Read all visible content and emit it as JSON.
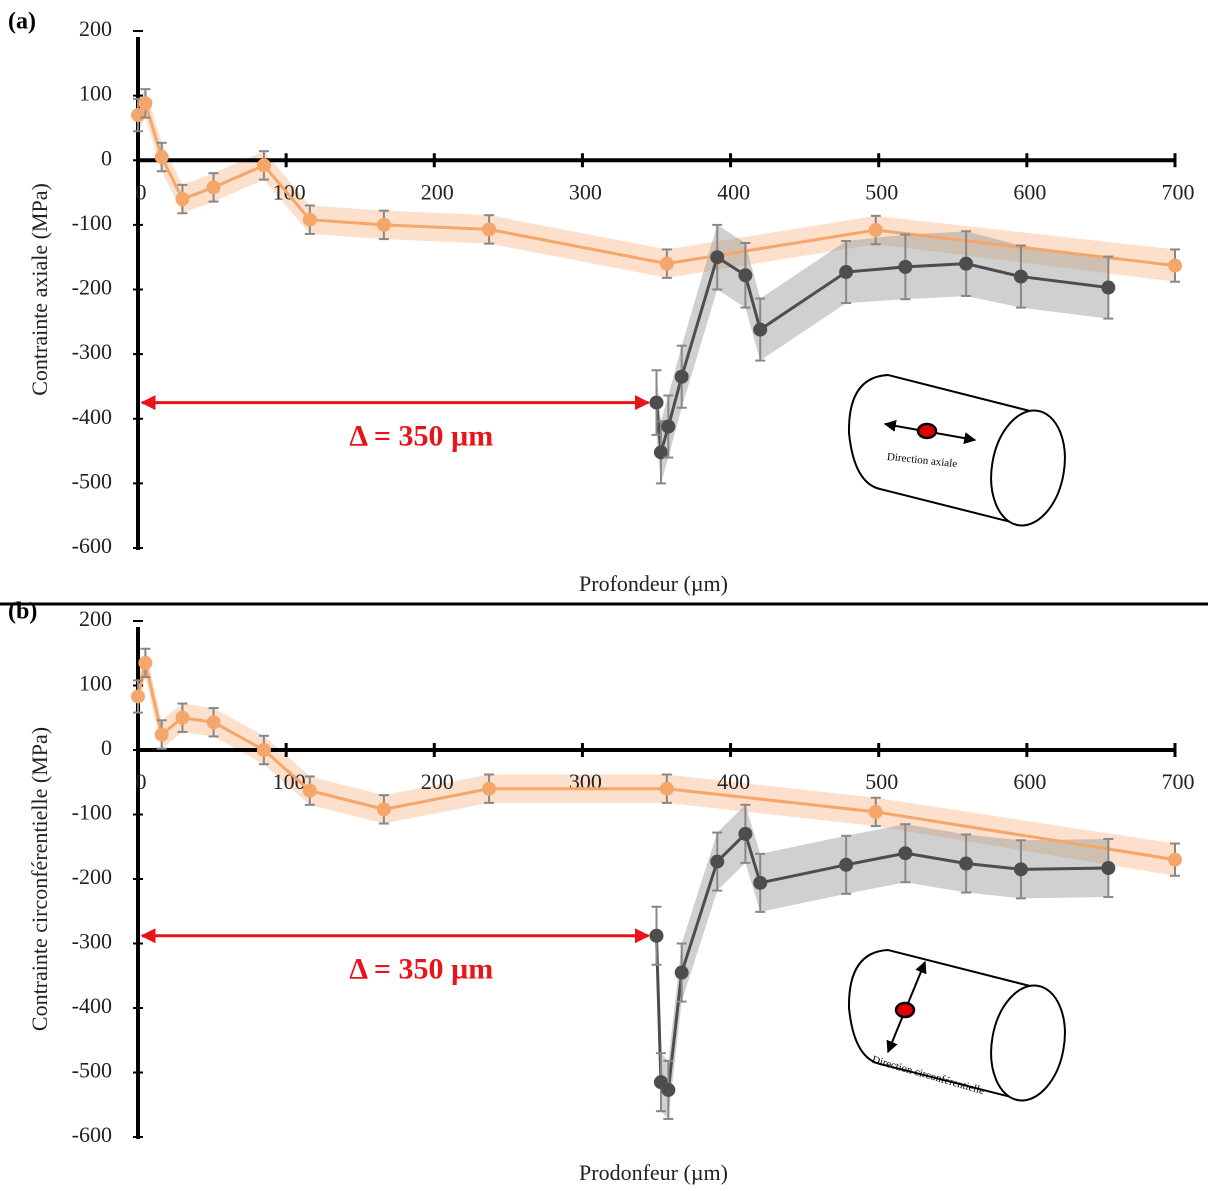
{
  "chart_data": [
    {
      "type": "line",
      "panel_label": "(a)",
      "xlabel": "Profondeur (µm)",
      "ylabel": "Contrainte axiale (MPa)",
      "xlim": [
        0,
        700
      ],
      "xticks": [
        0,
        100,
        200,
        300,
        400,
        500,
        600,
        700
      ],
      "ylim": [
        -600,
        200
      ],
      "yticks": [
        -600,
        -500,
        -400,
        -300,
        -200,
        -100,
        0,
        100,
        200
      ],
      "annotation": "Δ = 350 µm",
      "inset_label": "Direction axiale",
      "series": [
        {
          "color": "#f5a66b",
          "x": [
            0,
            5,
            16,
            30,
            51,
            85,
            116,
            166,
            237,
            357,
            498,
            700
          ],
          "values": [
            70,
            88,
            5,
            -60,
            -42,
            -8,
            -92,
            -100,
            -107,
            -160,
            -108,
            -163
          ],
          "errors": [
            25,
            22,
            22,
            22,
            22,
            22,
            22,
            22,
            22,
            22,
            22,
            25
          ]
        },
        {
          "color": "#4d4d4d",
          "x": [
            350,
            353,
            358,
            367,
            391,
            410,
            420,
            478,
            518,
            559,
            596,
            655
          ],
          "values": [
            -375,
            -452,
            -412,
            -335,
            -150,
            -178,
            -262,
            -173,
            -165,
            -160,
            -180,
            -197
          ],
          "errors": [
            50,
            48,
            48,
            48,
            50,
            50,
            48,
            48,
            50,
            50,
            48,
            48
          ]
        }
      ]
    },
    {
      "type": "line",
      "panel_label": "(b)",
      "xlabel": "Prodonfeur (µm)",
      "ylabel": "Contrainte  circonférentielle (MPa)",
      "xlim": [
        0,
        700
      ],
      "xticks": [
        0,
        100,
        200,
        300,
        400,
        500,
        600,
        700
      ],
      "ylim": [
        -600,
        200
      ],
      "yticks": [
        -600,
        -500,
        -400,
        -300,
        -200,
        -100,
        0,
        100,
        200
      ],
      "annotation": "Δ = 350 µm",
      "inset_label": "Direction circonférentielle",
      "series": [
        {
          "color": "#f5a66b",
          "x": [
            0,
            5,
            16,
            30,
            51,
            85,
            116,
            166,
            237,
            357,
            498,
            700
          ],
          "values": [
            83,
            135,
            24,
            50,
            43,
            0,
            -63,
            -92,
            -60,
            -60,
            -96,
            -170
          ],
          "errors": [
            25,
            22,
            22,
            22,
            22,
            22,
            22,
            22,
            22,
            22,
            22,
            25
          ]
        },
        {
          "color": "#4d4d4d",
          "x": [
            350,
            353,
            358,
            367,
            391,
            410,
            420,
            478,
            518,
            559,
            596,
            655
          ],
          "values": [
            -288,
            -515,
            -527,
            -345,
            -173,
            -130,
            -206,
            -178,
            -160,
            -176,
            -185,
            -183
          ],
          "errors": [
            45,
            45,
            45,
            45,
            45,
            45,
            45,
            45,
            45,
            45,
            45,
            45
          ]
        }
      ]
    }
  ]
}
